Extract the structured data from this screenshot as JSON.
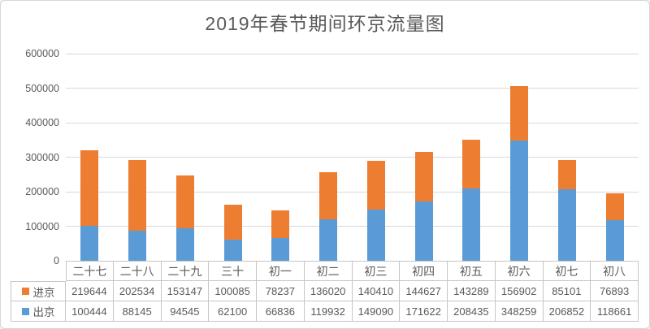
{
  "chart_data": {
    "type": "bar",
    "stacked": true,
    "title": "2019年春节期间环京流量图",
    "categories": [
      "二十七",
      "二十八",
      "二十九",
      "三十",
      "初一",
      "初二",
      "初三",
      "初四",
      "初五",
      "初六",
      "初七",
      "初八"
    ],
    "series": [
      {
        "name": "进京",
        "color": "#ED7D31",
        "values": [
          219644,
          202534,
          153147,
          100085,
          78237,
          136020,
          140410,
          144627,
          143289,
          156902,
          85101,
          76893
        ]
      },
      {
        "name": "出京",
        "color": "#5B9BD5",
        "values": [
          100444,
          88145,
          94545,
          62100,
          66836,
          119932,
          149090,
          171622,
          208435,
          348259,
          206852,
          118661
        ]
      }
    ],
    "stack_order_bottom_to_top": [
      "出京",
      "进京"
    ],
    "ylabel": "",
    "xlabel": "",
    "ylim": [
      0,
      600000
    ],
    "ytick_step": 100000,
    "ytick_labels": [
      "0",
      "100000",
      "200000",
      "300000",
      "400000",
      "500000",
      "600000"
    ],
    "grid": true,
    "legend_position": "data-table-left",
    "colors": {
      "title_text": "#595959",
      "axis_text": "#595959",
      "gridline": "#d9d9d9",
      "table_border": "#c6c6c6",
      "background": "#ffffff"
    }
  }
}
